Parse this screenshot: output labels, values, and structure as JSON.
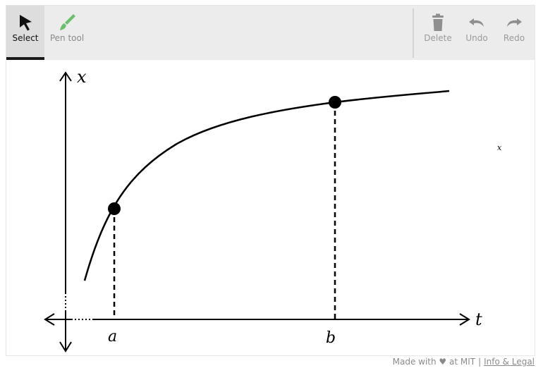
{
  "toolbar": {
    "select_label": "Select",
    "pen_label": "Pen tool",
    "delete_label": "Delete",
    "undo_label": "Undo",
    "redo_label": "Redo",
    "active_tool": "select",
    "icons": {
      "select": "cursor-arrow-icon",
      "pen": "paint-brush-icon",
      "delete": "trash-icon",
      "undo": "undo-arrow-icon",
      "redo": "redo-arrow-icon"
    }
  },
  "canvas": {
    "y_axis_label": "x",
    "x_axis_label": "t",
    "point_a_label": "a",
    "point_b_label": "b",
    "stray_label": "x"
  },
  "footer": {
    "made_with": "Made with ♥ at MIT",
    "separator": "|",
    "legal_link": "Info & Legal"
  },
  "colors": {
    "toolbar_bg": "#ececec",
    "active_tool_bg": "#dddddd",
    "pen_icon_color": "#6cbf6c",
    "disabled_text": "#9a9a9a",
    "ink": "#000000"
  }
}
